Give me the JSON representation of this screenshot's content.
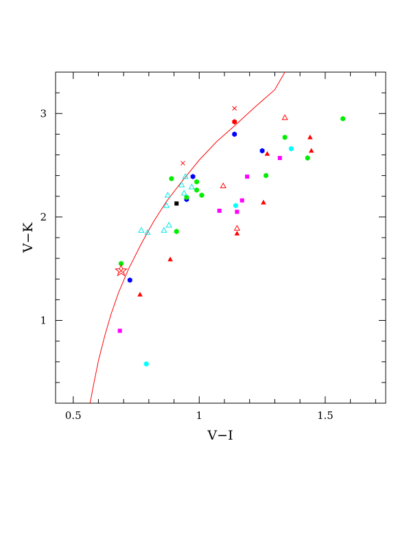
{
  "chart_data": {
    "type": "scatter",
    "xlabel": "V−I",
    "ylabel": "V−K",
    "xlim": [
      0.43,
      1.74
    ],
    "ylim": [
      0.2,
      3.4
    ],
    "x_ticks": [
      {
        "value": 0.5,
        "label": "0.5"
      },
      {
        "value": 1.0,
        "label": "1"
      },
      {
        "value": 1.5,
        "label": "1.5"
      }
    ],
    "y_ticks": [
      {
        "value": 1,
        "label": "1"
      },
      {
        "value": 2,
        "label": "2"
      },
      {
        "value": 3,
        "label": "3"
      }
    ],
    "grid": false,
    "legend": "none",
    "curve": {
      "color": "#ff0000",
      "x": [
        0.567,
        0.58,
        0.6,
        0.625,
        0.65,
        0.68,
        0.72,
        0.77,
        0.82,
        0.87,
        0.93,
        1.0,
        1.07,
        1.14,
        1.22,
        1.3,
        1.34
      ],
      "y": [
        0.2,
        0.37,
        0.61,
        0.85,
        1.06,
        1.27,
        1.5,
        1.74,
        1.96,
        2.15,
        2.34,
        2.55,
        2.73,
        2.88,
        3.06,
        3.23,
        3.4
      ]
    },
    "crosses": {
      "color": "#ff0000",
      "points": [
        [
          0.935,
          2.52
        ],
        [
          1.14,
          3.05
        ],
        [
          0.69,
          1.48
        ]
      ]
    },
    "star": {
      "color": "#ff0000",
      "x": 0.69,
      "y": 1.48
    },
    "series": [
      {
        "marker": "filled-hexagon",
        "color": "#0000ff",
        "points": [
          [
            0.725,
            1.39
          ],
          [
            0.95,
            2.17
          ],
          [
            0.975,
            2.39
          ],
          [
            1.14,
            2.8
          ],
          [
            1.25,
            2.64
          ]
        ]
      },
      {
        "marker": "filled-hexagon",
        "color": "#00ee00",
        "points": [
          [
            0.69,
            1.55
          ],
          [
            0.89,
            2.37
          ],
          [
            0.91,
            1.86
          ],
          [
            0.95,
            2.19
          ],
          [
            0.99,
            2.34
          ],
          [
            0.99,
            2.26
          ],
          [
            1.01,
            2.21
          ],
          [
            1.265,
            2.4
          ],
          [
            1.34,
            2.77
          ],
          [
            1.43,
            2.57
          ],
          [
            1.57,
            2.95
          ]
        ]
      },
      {
        "marker": "filled-hexagon",
        "color": "#00ffff",
        "points": [
          [
            0.79,
            0.58
          ],
          [
            1.145,
            2.11
          ],
          [
            1.365,
            2.66
          ]
        ]
      },
      {
        "marker": "filled-square",
        "color": "#ff00ff",
        "points": [
          [
            0.685,
            0.9
          ],
          [
            1.08,
            2.06
          ],
          [
            1.15,
            2.05
          ],
          [
            1.17,
            2.16
          ],
          [
            1.19,
            2.39
          ],
          [
            1.32,
            2.57
          ]
        ]
      },
      {
        "marker": "filled-square",
        "color": "#000000",
        "points": [
          [
            0.91,
            2.13
          ]
        ]
      },
      {
        "marker": "filled-triangle",
        "color": "#ff0000",
        "points": [
          [
            0.765,
            1.25
          ],
          [
            0.885,
            1.59
          ],
          [
            1.15,
            1.84
          ],
          [
            1.255,
            2.14
          ],
          [
            1.27,
            2.61
          ],
          [
            1.44,
            2.77
          ],
          [
            1.445,
            2.64
          ]
        ]
      },
      {
        "marker": "filled-hexagon",
        "color": "#ff0000",
        "points": [
          [
            1.14,
            2.92
          ]
        ]
      },
      {
        "marker": "open-triangle",
        "color": "#ff0000",
        "points": [
          [
            1.095,
            2.3
          ],
          [
            1.15,
            1.89
          ],
          [
            1.34,
            2.96
          ]
        ]
      },
      {
        "marker": "open-triangle",
        "color": "#00e5e5",
        "points": [
          [
            0.77,
            1.87
          ],
          [
            0.795,
            1.85
          ],
          [
            0.86,
            1.87
          ],
          [
            0.87,
            2.11
          ],
          [
            0.875,
            2.21
          ],
          [
            0.88,
            1.92
          ],
          [
            0.93,
            2.31
          ],
          [
            0.94,
            2.23
          ],
          [
            0.945,
            2.39
          ],
          [
            0.97,
            2.29
          ]
        ]
      }
    ]
  }
}
